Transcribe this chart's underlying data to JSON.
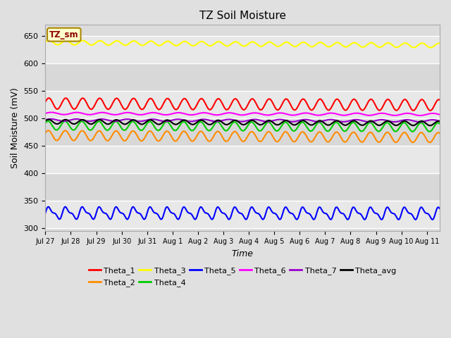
{
  "title": "TZ Soil Moisture",
  "xlabel": "Time",
  "ylabel": "Soil Moisture (mV)",
  "subtitle_box": "TZ_sm",
  "ylim": [
    295,
    670
  ],
  "yticks": [
    300,
    350,
    400,
    450,
    500,
    550,
    600,
    650
  ],
  "num_days": 15.5,
  "x_tick_labels": [
    "Jul 27",
    "Jul 28",
    "Jul 29",
    "Jul 30",
    "Jul 31",
    "Aug 1",
    "Aug 2",
    "Aug 3",
    "Aug 4",
    "Aug 5",
    "Aug 6",
    "Aug 7",
    "Aug 8",
    "Aug 9",
    "Aug 10",
    "Aug 11"
  ],
  "series": {
    "Theta_1": {
      "color": "#ff0000",
      "base": 527,
      "amplitude": 10,
      "trend": -0.18,
      "freq_per_day": 1.5,
      "phase": 0.3
    },
    "Theta_2": {
      "color": "#ff8c00",
      "base": 469,
      "amplitude": 9,
      "trend": -0.25,
      "freq_per_day": 1.5,
      "phase": 0.5
    },
    "Theta_3": {
      "color": "#ffff00",
      "base": 638,
      "amplitude": 4,
      "trend": -0.35,
      "freq_per_day": 1.5,
      "phase": 0.2
    },
    "Theta_4": {
      "color": "#00cc00",
      "base": 487,
      "amplitude": 8,
      "trend": -0.2,
      "freq_per_day": 1.5,
      "phase": 0.6
    },
    "Theta_5": {
      "color": "#0000ff",
      "base": 328,
      "amplitude": 9,
      "trend": -0.05,
      "freq_per_day": 1.5,
      "phase": 0.0,
      "extra_freq": 3.0,
      "extra_amp": 4
    },
    "Theta_6": {
      "color": "#ff00ff",
      "base": 509,
      "amplitude": 2,
      "trend": -0.12,
      "freq_per_day": 1.0,
      "phase": 0.1
    },
    "Theta_7": {
      "color": "#9900cc",
      "base": 497,
      "amplitude": 2,
      "trend": -0.1,
      "freq_per_day": 1.0,
      "phase": 0.2
    },
    "Theta_avg": {
      "color": "#000000",
      "base": 494,
      "amplitude": 4,
      "trend": -0.2,
      "freq_per_day": 1.5,
      "phase": 0.4
    }
  },
  "bg_color": "#e0e0e0",
  "plot_bg_color_top": "#e8e8e8",
  "plot_bg_color_bottom": "#d0d0d0",
  "grid_color": "#ffffff",
  "legend_fontsize": 8,
  "title_fontsize": 11,
  "legend_order": [
    "Theta_1",
    "Theta_2",
    "Theta_3",
    "Theta_4",
    "Theta_5",
    "Theta_6",
    "Theta_7",
    "Theta_avg"
  ]
}
